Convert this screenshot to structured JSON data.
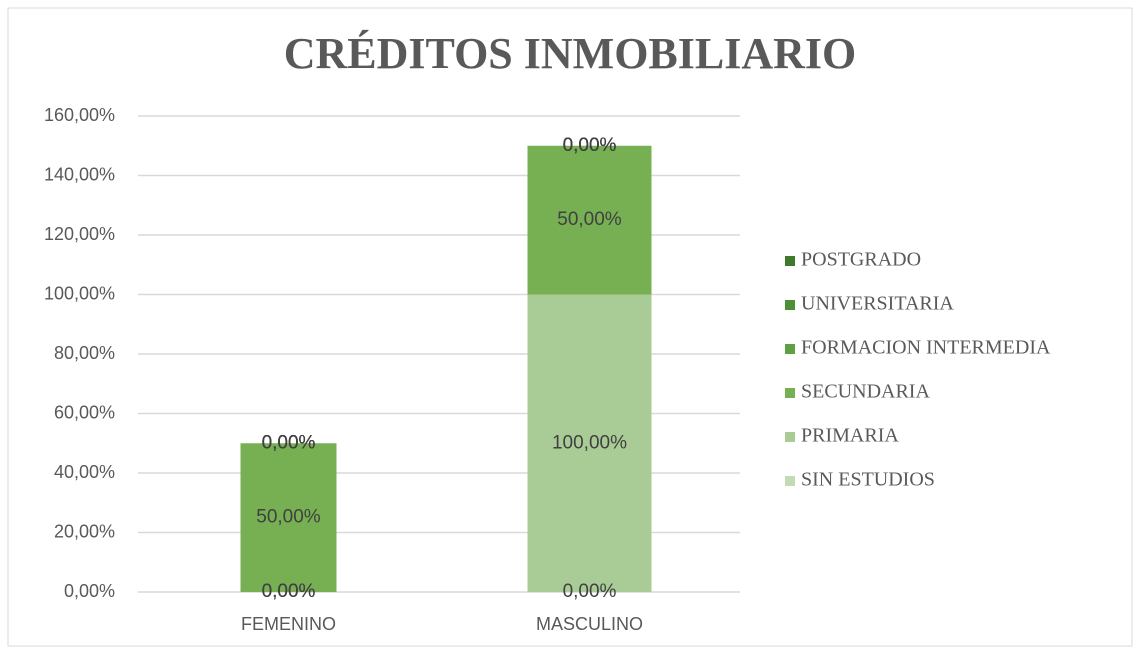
{
  "chart_data": {
    "type": "stacked_bar",
    "title": "CRÉDITOS INMOBILIARIO",
    "categories": [
      "FEMENINO",
      "MASCULINO"
    ],
    "series": [
      {
        "name": "SIN ESTUDIOS",
        "color": "#c3dbb4",
        "values": [
          0,
          0
        ],
        "value_labels": [
          "0,00%",
          "0,00%"
        ]
      },
      {
        "name": "PRIMARIA",
        "color": "#a9cc96",
        "values": [
          0,
          100
        ],
        "value_labels": [
          "0,00%",
          "100,00%"
        ]
      },
      {
        "name": "SECUNDARIA",
        "color": "#77b053",
        "values": [
          50,
          50
        ],
        "value_labels": [
          "50,00%",
          "50,00%"
        ]
      },
      {
        "name": "FORMACION INTERMEDIA",
        "color": "#5fa043",
        "values": [
          0,
          0
        ],
        "value_labels": [
          "0,00%",
          "0,00%"
        ]
      },
      {
        "name": "UNIVERSITARIA",
        "color": "#4e8f38",
        "values": [
          0,
          0
        ],
        "value_labels": [
          "0,00%",
          "0,00%"
        ]
      },
      {
        "name": "POSTGRADO",
        "color": "#3d7a2c",
        "values": [
          0,
          0
        ],
        "value_labels": [
          "0,00%",
          "0,00%"
        ]
      }
    ],
    "ylim": [
      0,
      160
    ],
    "yticks": [
      {
        "value": 0,
        "label": "0,00%"
      },
      {
        "value": 20,
        "label": "20,00%"
      },
      {
        "value": 40,
        "label": "40,00%"
      },
      {
        "value": 60,
        "label": "60,00%"
      },
      {
        "value": 80,
        "label": "80,00%"
      },
      {
        "value": 100,
        "label": "100,00%"
      },
      {
        "value": 120,
        "label": "120,00%"
      },
      {
        "value": 140,
        "label": "140,00%"
      },
      {
        "value": 160,
        "label": "160,00%"
      }
    ],
    "grid": true,
    "legend": "right"
  }
}
